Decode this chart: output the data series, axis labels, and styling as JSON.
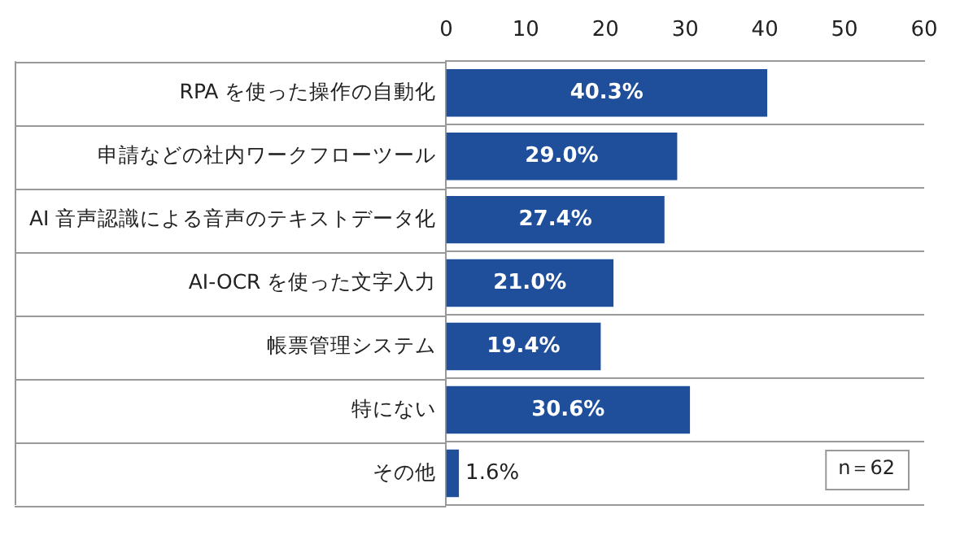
{
  "chart_data": {
    "type": "bar",
    "orientation": "horizontal",
    "categories": [
      "RPA を使った操作の自動化",
      "申請などの社内ワークフローツール",
      "AI 音声認識による音声のテキストデータ化",
      "AI-OCR を使った文字入力",
      "帳票管理システム",
      "特にない",
      "その他"
    ],
    "values": [
      40.3,
      29.0,
      27.4,
      21.0,
      19.4,
      30.6,
      1.6
    ],
    "value_labels": [
      "40.3%",
      "29.0%",
      "27.4%",
      "21.0%",
      "19.4%",
      "30.6%",
      "1.6%"
    ],
    "color": "#1f4e9a",
    "xlim": [
      0,
      60
    ],
    "xticks": [
      0,
      10,
      20,
      30,
      40,
      50,
      60
    ],
    "grid": "y",
    "annotations": [
      "n＝62"
    ]
  }
}
